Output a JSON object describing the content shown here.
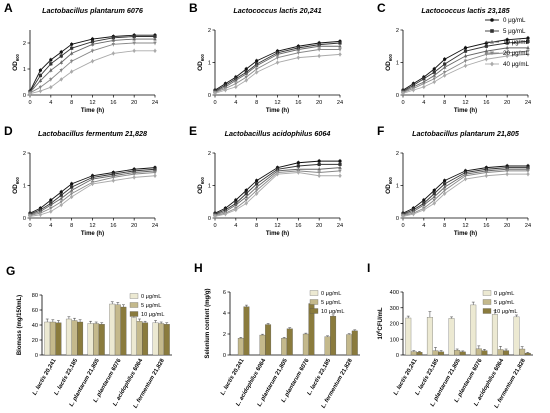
{
  "chart_data": [
    {
      "type": "line",
      "letter": "A",
      "title": "Lactobacillus plantarum 6076",
      "xlabel": "Time (h)",
      "ylabel_main": "OD",
      "ylabel_sub": "600",
      "x": [
        0,
        2,
        4,
        6,
        8,
        12,
        16,
        20,
        24
      ],
      "xticks": [
        0,
        4,
        8,
        12,
        16,
        20,
        24
      ],
      "ylim": [
        0,
        2.5
      ],
      "yticks": [
        0,
        1,
        2
      ],
      "series": [
        {
          "name": "0 μg/mL",
          "values": [
            0.15,
            0.95,
            1.35,
            1.65,
            1.95,
            2.15,
            2.25,
            2.3,
            2.3
          ]
        },
        {
          "name": "5 μg/mL",
          "values": [
            0.12,
            0.75,
            1.2,
            1.5,
            1.8,
            2.05,
            2.2,
            2.25,
            2.25
          ]
        },
        {
          "name": "10 μg/mL",
          "values": [
            0.1,
            0.55,
            0.95,
            1.25,
            1.6,
            1.95,
            2.1,
            2.15,
            2.15
          ]
        },
        {
          "name": "20 μg/mL",
          "values": [
            0.08,
            0.3,
            0.6,
            0.95,
            1.3,
            1.7,
            1.95,
            2.0,
            2.0
          ]
        },
        {
          "name": "40 μg/mL",
          "values": [
            0.05,
            0.15,
            0.3,
            0.6,
            0.9,
            1.3,
            1.6,
            1.7,
            1.7
          ]
        }
      ]
    },
    {
      "type": "line",
      "letter": "B",
      "title": "Lactococcus lactis 20,241",
      "xlabel": "Time (h)",
      "ylabel_main": "OD",
      "ylabel_sub": "600",
      "x": [
        0,
        2,
        4,
        6,
        8,
        12,
        16,
        20,
        24
      ],
      "xticks": [
        0,
        4,
        8,
        12,
        16,
        20,
        24
      ],
      "ylim": [
        0,
        2.0
      ],
      "yticks": [
        0,
        1,
        2
      ],
      "series": [
        {
          "name": "0 μg/mL",
          "values": [
            0.15,
            0.35,
            0.55,
            0.8,
            1.05,
            1.35,
            1.5,
            1.6,
            1.65
          ]
        },
        {
          "name": "5 μg/mL",
          "values": [
            0.12,
            0.3,
            0.5,
            0.7,
            0.95,
            1.3,
            1.45,
            1.55,
            1.6
          ]
        },
        {
          "name": "10 μg/mL",
          "values": [
            0.1,
            0.25,
            0.45,
            0.65,
            0.9,
            1.25,
            1.4,
            1.5,
            1.5
          ]
        },
        {
          "name": "20 μg/mL",
          "values": [
            0.08,
            0.2,
            0.35,
            0.55,
            0.8,
            1.15,
            1.3,
            1.4,
            1.4
          ]
        },
        {
          "name": "40 μg/mL",
          "values": [
            0.05,
            0.15,
            0.25,
            0.45,
            0.7,
            1.0,
            1.15,
            1.2,
            1.25
          ]
        }
      ]
    },
    {
      "type": "line",
      "letter": "C",
      "title": "Lactococcus lactis 23,185",
      "xlabel": "Time (h)",
      "ylabel_main": "OD",
      "ylabel_sub": "600",
      "x": [
        0,
        2,
        4,
        6,
        8,
        12,
        16,
        20,
        24
      ],
      "xticks": [
        0,
        4,
        8,
        12,
        16,
        20,
        24
      ],
      "ylim": [
        0,
        2.0
      ],
      "yticks": [
        0,
        1,
        2
      ],
      "series": [
        {
          "name": "0 μg/mL",
          "values": [
            0.15,
            0.35,
            0.55,
            0.8,
            1.1,
            1.45,
            1.6,
            1.7,
            1.75
          ]
        },
        {
          "name": "5 μg/mL",
          "values": [
            0.12,
            0.3,
            0.5,
            0.7,
            0.95,
            1.35,
            1.5,
            1.6,
            1.65
          ]
        },
        {
          "name": "10 μg/mL",
          "values": [
            0.1,
            0.25,
            0.4,
            0.6,
            0.85,
            1.2,
            1.35,
            1.45,
            1.45
          ]
        },
        {
          "name": "20 μg/mL",
          "values": [
            0.08,
            0.2,
            0.35,
            0.5,
            0.7,
            1.05,
            1.25,
            1.3,
            1.35
          ]
        },
        {
          "name": "40 μg/mL",
          "values": [
            0.05,
            0.15,
            0.25,
            0.4,
            0.6,
            0.9,
            1.1,
            1.2,
            1.25
          ]
        }
      ]
    },
    {
      "type": "line",
      "letter": "D",
      "title": "Lactobacillus fermentum 21,828",
      "xlabel": "Time (h)",
      "ylabel_main": "OD",
      "ylabel_sub": "600",
      "x": [
        0,
        2,
        4,
        6,
        8,
        12,
        16,
        20,
        24
      ],
      "xticks": [
        0,
        4,
        8,
        12,
        16,
        20,
        24
      ],
      "ylim": [
        0,
        2.0
      ],
      "yticks": [
        0,
        1,
        2
      ],
      "series": [
        {
          "name": "0 μg/mL",
          "values": [
            0.15,
            0.3,
            0.55,
            0.8,
            1.05,
            1.3,
            1.4,
            1.5,
            1.55
          ]
        },
        {
          "name": "5 μg/mL",
          "values": [
            0.12,
            0.25,
            0.45,
            0.7,
            0.95,
            1.25,
            1.35,
            1.45,
            1.5
          ]
        },
        {
          "name": "10 μg/mL",
          "values": [
            0.1,
            0.2,
            0.4,
            0.6,
            0.85,
            1.2,
            1.3,
            1.4,
            1.45
          ]
        },
        {
          "name": "20 μg/mL",
          "values": [
            0.08,
            0.15,
            0.3,
            0.5,
            0.75,
            1.1,
            1.25,
            1.35,
            1.4
          ]
        },
        {
          "name": "40 μg/mL",
          "values": [
            0.05,
            0.1,
            0.2,
            0.4,
            0.65,
            1.05,
            1.15,
            1.25,
            1.3
          ]
        }
      ]
    },
    {
      "type": "line",
      "letter": "E",
      "title": "Lactobacillus acidophilus 6064",
      "xlabel": "Time (h)",
      "ylabel_main": "OD",
      "ylabel_sub": "600",
      "x": [
        0,
        2,
        4,
        6,
        8,
        12,
        16,
        20,
        24
      ],
      "xticks": [
        0,
        4,
        8,
        12,
        16,
        20,
        24
      ],
      "ylim": [
        0,
        2.0
      ],
      "yticks": [
        0,
        1,
        2
      ],
      "series": [
        {
          "name": "0 μg/mL",
          "values": [
            0.15,
            0.3,
            0.55,
            0.85,
            1.15,
            1.55,
            1.7,
            1.75,
            1.75
          ]
        },
        {
          "name": "5 μg/mL",
          "values": [
            0.12,
            0.25,
            0.45,
            0.75,
            1.05,
            1.5,
            1.6,
            1.65,
            1.65
          ]
        },
        {
          "name": "10 μg/mL",
          "values": [
            0.1,
            0.2,
            0.4,
            0.65,
            0.95,
            1.45,
            1.5,
            1.5,
            1.55
          ]
        },
        {
          "name": "20 μg/mL",
          "values": [
            0.08,
            0.15,
            0.3,
            0.55,
            0.85,
            1.4,
            1.45,
            1.4,
            1.45
          ]
        },
        {
          "name": "40 μg/mL",
          "values": [
            0.05,
            0.12,
            0.25,
            0.45,
            0.75,
            1.35,
            1.4,
            1.3,
            1.3
          ]
        }
      ]
    },
    {
      "type": "line",
      "letter": "F",
      "title": "Lactobacillus plantarum 21,805",
      "xlabel": "Time (h)",
      "ylabel_main": "OD",
      "ylabel_sub": "600",
      "x": [
        0,
        2,
        4,
        6,
        8,
        12,
        16,
        20,
        24
      ],
      "xticks": [
        0,
        4,
        8,
        12,
        16,
        20,
        24
      ],
      "ylim": [
        0,
        2.0
      ],
      "yticks": [
        0,
        1,
        2
      ],
      "series": [
        {
          "name": "0 μg/mL",
          "values": [
            0.15,
            0.3,
            0.55,
            0.85,
            1.15,
            1.45,
            1.55,
            1.6,
            1.6
          ]
        },
        {
          "name": "5 μg/mL",
          "values": [
            0.12,
            0.25,
            0.45,
            0.75,
            1.05,
            1.4,
            1.5,
            1.55,
            1.55
          ]
        },
        {
          "name": "10 μg/mL",
          "values": [
            0.1,
            0.2,
            0.4,
            0.65,
            0.95,
            1.35,
            1.45,
            1.5,
            1.5
          ]
        },
        {
          "name": "20 μg/mL",
          "values": [
            0.08,
            0.15,
            0.3,
            0.55,
            0.85,
            1.3,
            1.4,
            1.45,
            1.45
          ]
        },
        {
          "name": "40 μg/mL",
          "values": [
            0.05,
            0.12,
            0.25,
            0.45,
            0.75,
            1.2,
            1.3,
            1.35,
            1.35
          ]
        }
      ]
    },
    {
      "type": "bar",
      "letter": "G",
      "ylabel": "Biomass (mg/150mL)",
      "ylim": [
        0,
        80
      ],
      "yticks": [
        0,
        20,
        40,
        60,
        80
      ],
      "categories": [
        {
          "italic": "L. lactis",
          "num": "20,241"
        },
        {
          "italic": "L. lactis",
          "num": "23,185"
        },
        {
          "italic": "L. plantarum",
          "num": "21,805"
        },
        {
          "italic": "L. plantarum",
          "num": "6076"
        },
        {
          "italic": "L. acidophilus",
          "num": "6064"
        },
        {
          "italic": "L. fermentum",
          "num": "21,828"
        }
      ],
      "series": [
        {
          "name": "0 μg/mL",
          "values": [
            44,
            48,
            42,
            68,
            50,
            43
          ],
          "errors": [
            4,
            3,
            3,
            3,
            3,
            3
          ]
        },
        {
          "name": "5 μg/mL",
          "values": [
            44,
            46,
            42,
            67,
            45,
            42
          ],
          "errors": [
            3,
            3,
            2,
            3,
            3,
            2
          ]
        },
        {
          "name": "10 μg/mL",
          "values": [
            43,
            44,
            41,
            64,
            43,
            41
          ],
          "errors": [
            3,
            3,
            2,
            3,
            2,
            2
          ]
        }
      ]
    },
    {
      "type": "bar",
      "letter": "H",
      "ylabel": "Selenium content (mg/g)",
      "ylim": [
        0,
        6
      ],
      "yticks": [
        0,
        2,
        4,
        6
      ],
      "categories": [
        {
          "italic": "L. lactis",
          "num": "20,241"
        },
        {
          "italic": "L. acidophilus",
          "num": "6064"
        },
        {
          "italic": "L. plantarum",
          "num": "21,805"
        },
        {
          "italic": "L. plantarum",
          "num": "6076"
        },
        {
          "italic": "L. lactis",
          "num": "23,185"
        },
        {
          "italic": "L. fermentum",
          "num": "21,828"
        }
      ],
      "series": [
        {
          "name": "0 μg/mL",
          "values": [
            0,
            0,
            0,
            0,
            0,
            0
          ],
          "errors": [
            0,
            0,
            0,
            0,
            0,
            0
          ]
        },
        {
          "name": "5 μg/mL",
          "values": [
            1.6,
            1.9,
            1.6,
            2.0,
            1.75,
            1.95
          ],
          "errors": [
            0.08,
            0.08,
            0.08,
            0.08,
            0.08,
            0.08
          ]
        },
        {
          "name": "10 μg/mL",
          "values": [
            4.6,
            2.9,
            2.5,
            4.9,
            3.7,
            2.3
          ],
          "errors": [
            0.15,
            0.1,
            0.1,
            0.12,
            0.12,
            0.1
          ]
        }
      ]
    },
    {
      "type": "bar",
      "letter": "I",
      "ylabel": "10",
      "ylabel_sup": "6",
      "ylabel_tail": "CFU/mL",
      "ylim": [
        0,
        400
      ],
      "yticks": [
        0,
        100,
        200,
        300,
        400
      ],
      "categories": [
        {
          "italic": "L. lactis",
          "num": "20,241"
        },
        {
          "italic": "L. lactis",
          "num": "23,185"
        },
        {
          "italic": "L. plantarum",
          "num": "21,805"
        },
        {
          "italic": "L. plantarum",
          "num": "6076"
        },
        {
          "italic": "L. acidophilus",
          "num": "6064"
        },
        {
          "italic": "L. fermentum",
          "num": "21,828"
        }
      ],
      "series": [
        {
          "name": "0 μg/mL",
          "values": [
            235,
            240,
            232,
            318,
            258,
            242
          ],
          "errors": [
            12,
            35,
            10,
            18,
            25,
            12
          ]
        },
        {
          "name": "5 μg/mL",
          "values": [
            22,
            28,
            30,
            40,
            35,
            38
          ],
          "errors": [
            6,
            20,
            8,
            18,
            20,
            15
          ]
        },
        {
          "name": "10 μg/mL",
          "values": [
            18,
            20,
            20,
            28,
            28,
            12
          ],
          "errors": [
            5,
            8,
            6,
            8,
            10,
            5
          ]
        }
      ]
    }
  ],
  "legend_line": {
    "items": [
      {
        "label": "0 μg/mL",
        "marker": "circle"
      },
      {
        "label": "5 μg/mL",
        "marker": "square"
      },
      {
        "label": "10 μg/mL",
        "marker": "triangle-up"
      },
      {
        "label": "20 μg/mL",
        "marker": "triangle-down"
      },
      {
        "label": "40 μg/mL",
        "marker": "diamond"
      }
    ]
  },
  "colors": {
    "line_series": [
      "#111111",
      "#333333",
      "#666666",
      "#888888",
      "#aaaaaa"
    ],
    "bar_series": [
      "#ece9d2",
      "#c4b98c",
      "#8a7b3d"
    ],
    "bar_outline": "#555555"
  }
}
